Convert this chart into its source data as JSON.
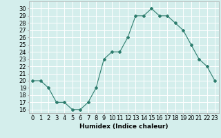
{
  "x": [
    0,
    1,
    2,
    3,
    4,
    5,
    6,
    7,
    8,
    9,
    10,
    11,
    12,
    13,
    14,
    15,
    16,
    17,
    18,
    19,
    20,
    21,
    22,
    23
  ],
  "y": [
    20,
    20,
    19,
    17,
    17,
    16,
    16,
    17,
    19,
    23,
    24,
    24,
    26,
    29,
    29,
    30,
    29,
    29,
    28,
    27,
    25,
    23,
    22,
    20
  ],
  "line_color": "#2e7d6e",
  "marker": "D",
  "marker_size": 2,
  "bg_color": "#d4eeec",
  "grid_color": "#ffffff",
  "xlabel": "Humidex (Indice chaleur)",
  "ylabel_ticks": [
    16,
    17,
    18,
    19,
    20,
    21,
    22,
    23,
    24,
    25,
    26,
    27,
    28,
    29,
    30
  ],
  "ylim": [
    15.5,
    31.0
  ],
  "xlim": [
    -0.5,
    23.5
  ],
  "xlabel_fontsize": 6.5,
  "tick_fontsize": 6
}
